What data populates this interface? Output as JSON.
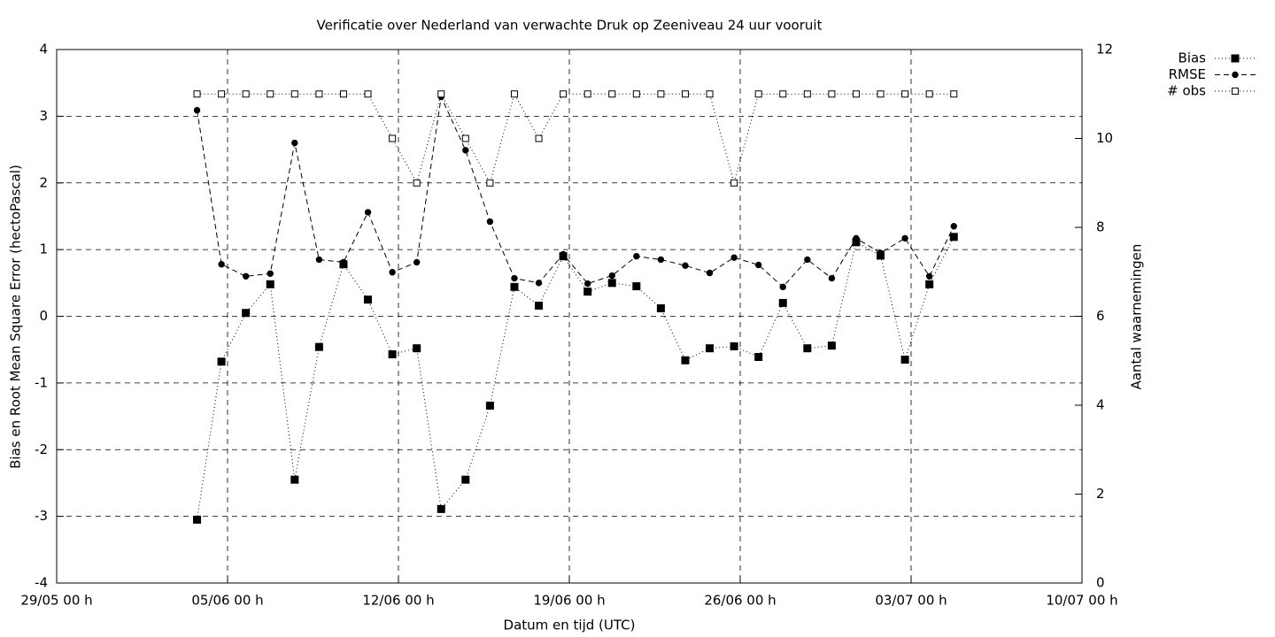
{
  "chart_data": {
    "type": "line",
    "title": "Verificatie over Nederland van verwachte Druk op Zeeniveau 24 uur vooruit",
    "x_label": "Datum en tijd (UTC)",
    "y_label": "Bias en Root Mean Square Error (hectoPascal)",
    "y2_label": "Aantal waarnemingen",
    "grid": true,
    "legend": "outside-top-right",
    "xlim": [
      0,
      42
    ],
    "xticks": [
      {
        "value": 0,
        "label": "29/05 00 h"
      },
      {
        "value": 7,
        "label": "05/06 00 h"
      },
      {
        "value": 14,
        "label": "12/06 00 h"
      },
      {
        "value": 21,
        "label": "19/06 00 h"
      },
      {
        "value": 28,
        "label": "26/06 00 h"
      },
      {
        "value": 35,
        "label": "03/07 00 h"
      },
      {
        "value": 42,
        "label": "10/07 00 h"
      }
    ],
    "ylim": [
      -4,
      4
    ],
    "yticks": [
      -4,
      -3,
      -2,
      -1,
      0,
      1,
      2,
      3,
      4
    ],
    "y2lim": [
      0,
      12
    ],
    "y2ticks": [
      0,
      2,
      4,
      6,
      8,
      10,
      12
    ],
    "x": [
      5.75,
      6.75,
      7.75,
      8.75,
      9.75,
      10.75,
      11.75,
      12.75,
      13.75,
      14.75,
      15.75,
      16.75,
      17.75,
      18.75,
      19.75,
      20.75,
      21.75,
      22.75,
      23.75,
      24.75,
      25.75,
      26.75,
      27.75,
      28.75,
      29.75,
      30.75,
      31.75,
      32.75,
      33.75,
      34.75,
      35.75,
      36.75
    ],
    "series": [
      {
        "name": "Bias",
        "color": "#000000",
        "marker": "filled-square",
        "dash": "1,3",
        "values": [
          -3.05,
          -0.68,
          0.05,
          0.48,
          -2.45,
          -0.46,
          0.78,
          0.25,
          -0.57,
          -0.48,
          -2.89,
          -2.45,
          -1.34,
          0.44,
          0.16,
          0.9,
          0.37,
          0.5,
          0.45,
          0.12,
          -0.66,
          -0.48,
          -0.45,
          -0.61,
          0.2,
          -0.48,
          -0.44,
          1.11,
          0.91,
          -0.65,
          0.48,
          1.19
        ]
      },
      {
        "name": "RMSE",
        "color": "#000000",
        "marker": "filled-circle",
        "dash": "6,4",
        "values": [
          3.09,
          0.78,
          0.6,
          0.64,
          2.6,
          0.85,
          0.81,
          1.56,
          0.66,
          0.81,
          3.29,
          2.49,
          1.42,
          0.57,
          0.5,
          0.93,
          0.49,
          0.61,
          0.9,
          0.85,
          0.76,
          0.65,
          0.88,
          0.77,
          0.44,
          0.85,
          0.57,
          1.17,
          0.95,
          1.17,
          0.6,
          1.35
        ]
      },
      {
        "name": "# obs",
        "color": "#000000",
        "marker": "open-square",
        "dash": "1,3",
        "axis": "y2",
        "values": [
          11,
          11,
          11,
          11,
          11,
          11,
          11,
          11,
          10,
          9,
          11,
          10,
          9,
          11,
          10,
          11,
          11,
          11,
          11,
          11,
          11,
          11,
          9,
          11,
          11,
          11,
          11,
          11,
          11,
          11,
          11,
          11
        ]
      }
    ]
  }
}
